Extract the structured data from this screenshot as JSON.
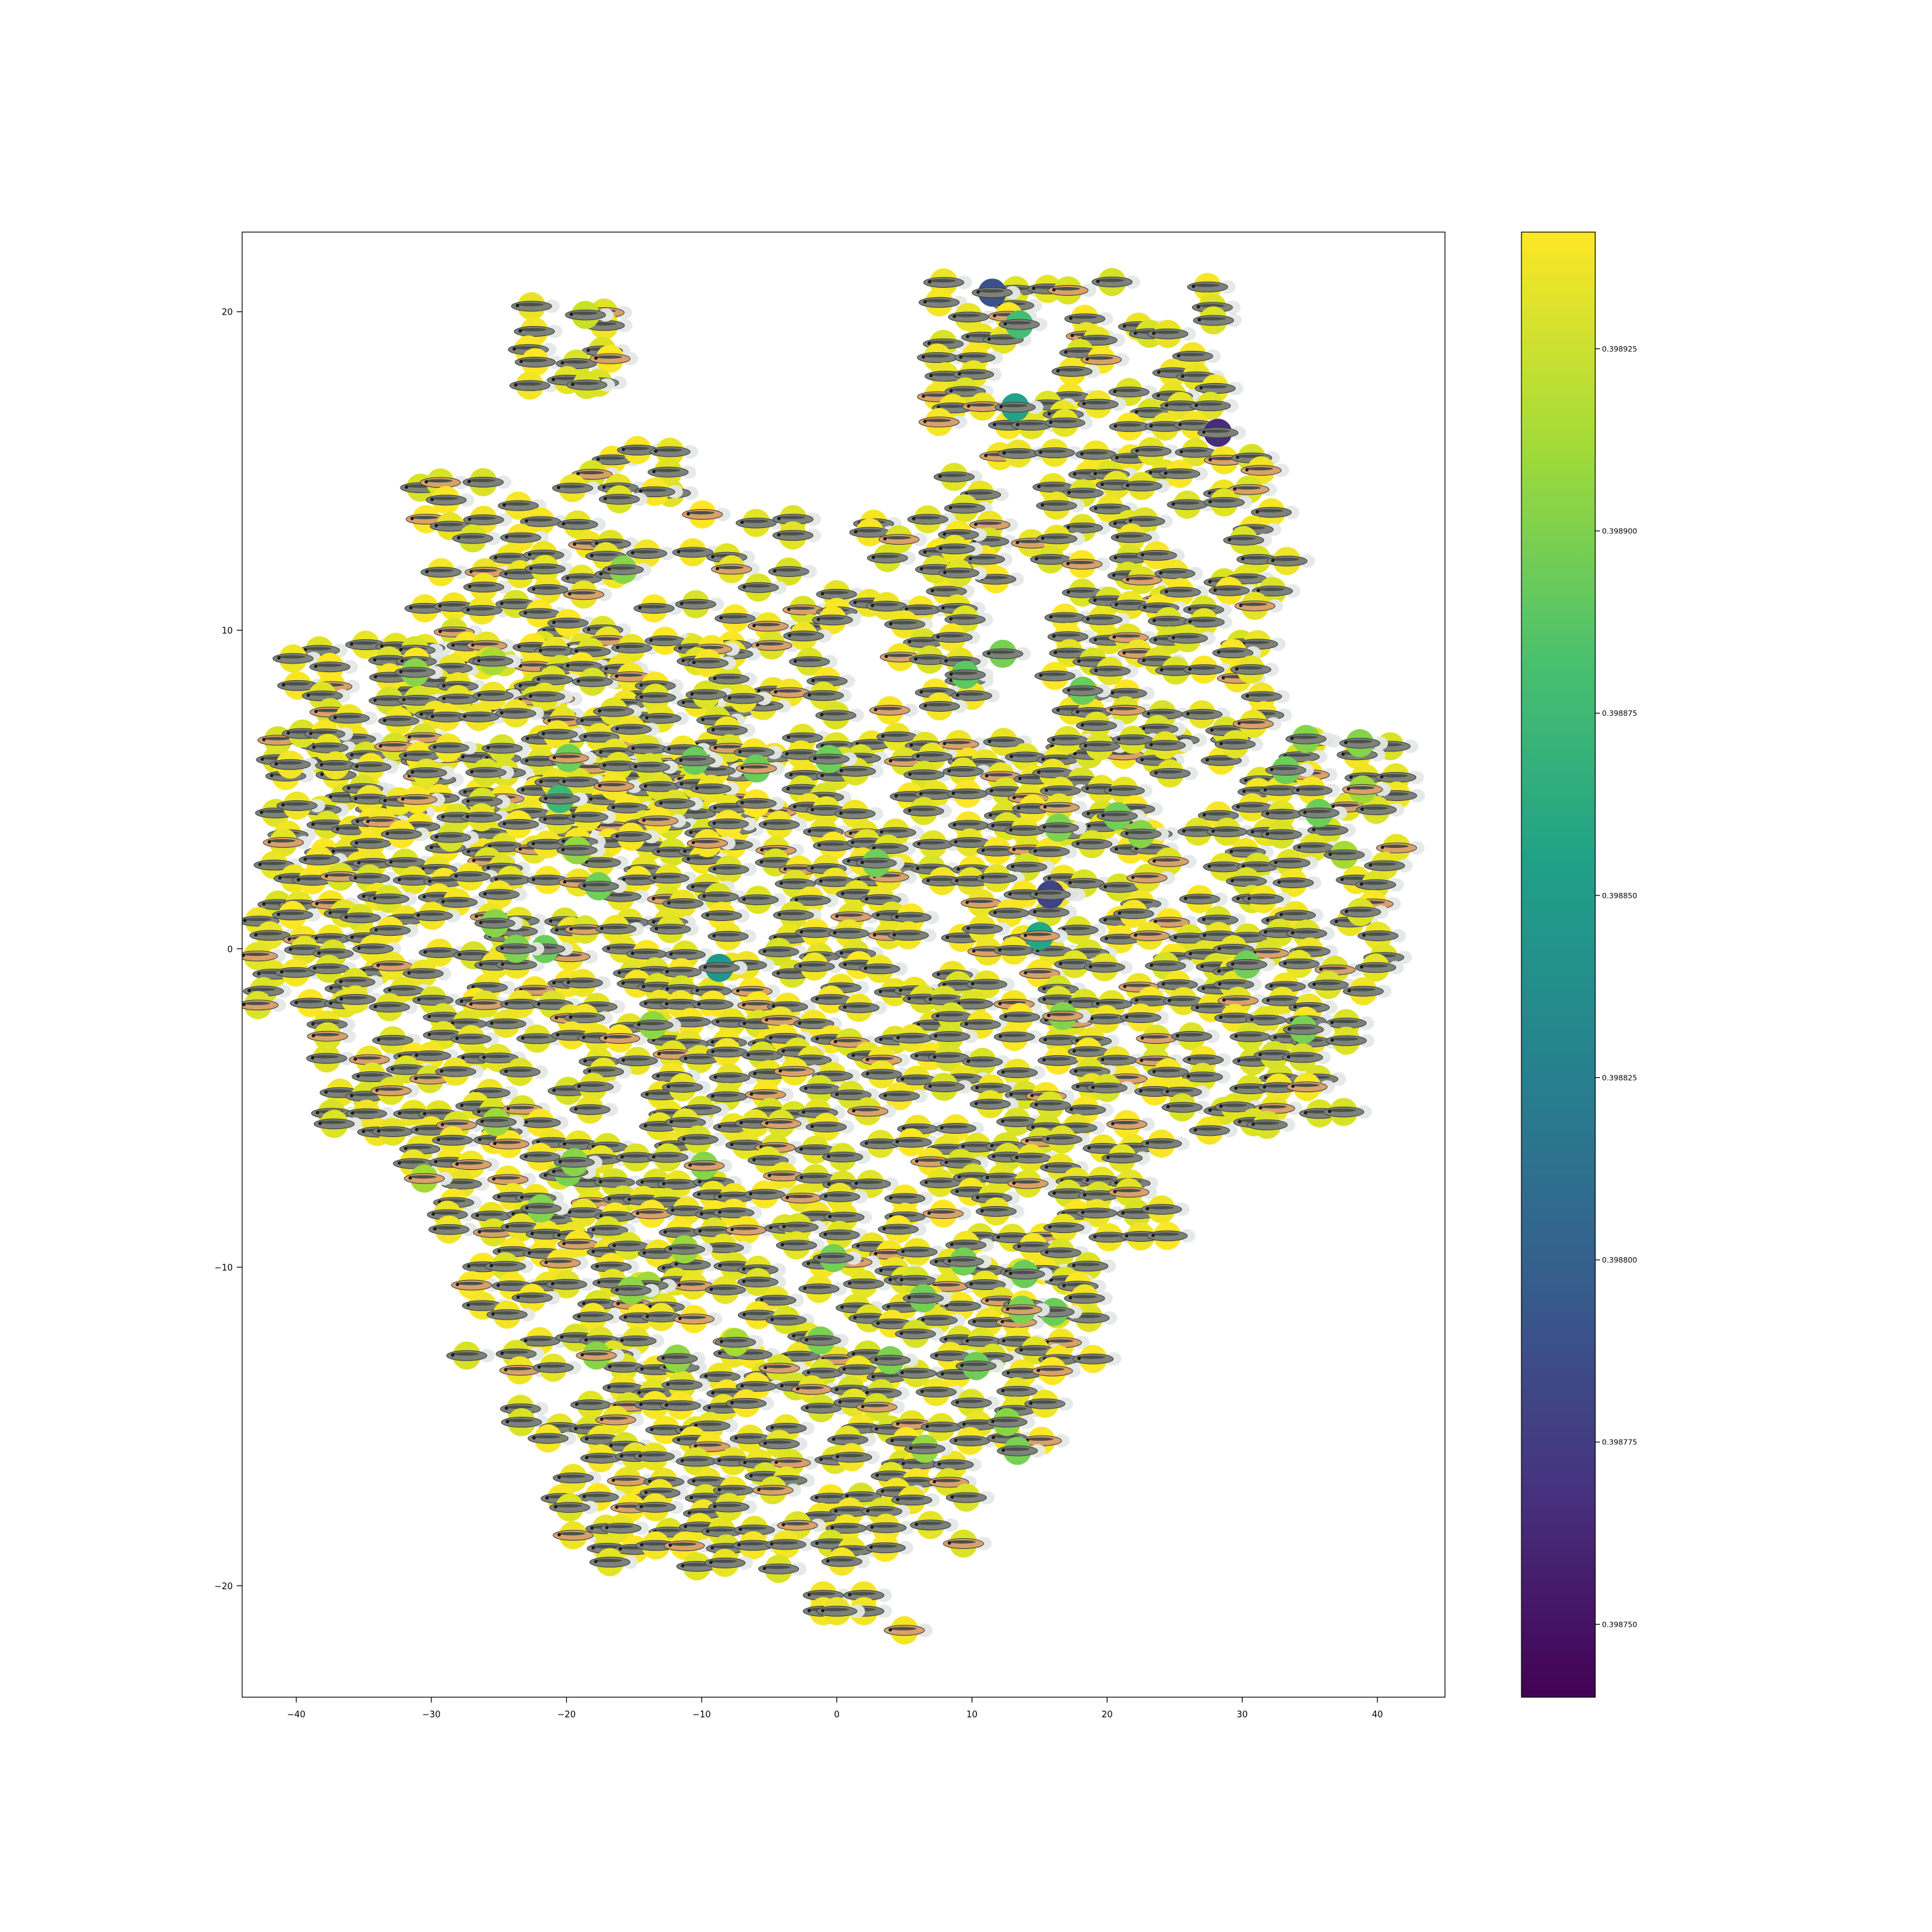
{
  "chart_data": {
    "type": "scatter",
    "title": "",
    "xlabel": "",
    "ylabel": "",
    "xlim": [
      -44,
      45
    ],
    "ylim": [
      -23.5,
      22.5
    ],
    "xticks": [
      -40,
      -30,
      -20,
      -10,
      0,
      10,
      20,
      30,
      40
    ],
    "xtick_labels": [
      "−40",
      "−30",
      "−20",
      "−10",
      "0",
      "10",
      "20",
      "30",
      "40"
    ],
    "yticks": [
      -20,
      -10,
      0,
      10,
      20
    ],
    "ytick_labels": [
      "−20",
      "−10",
      "0",
      "10",
      "20"
    ],
    "grid": false,
    "legend": "none",
    "marker": "fish-thumbnail-icon",
    "colormap": "viridis",
    "colorbar": {
      "range": [
        0.39874,
        0.398941
      ],
      "ticks": [
        0.39875,
        0.398775,
        0.3988,
        0.398825,
        0.39885,
        0.398875,
        0.3989,
        0.398925
      ],
      "tick_labels": [
        "0.398750",
        "0.398775",
        "0.398800",
        "0.398825",
        "0.398850",
        "0.398875",
        "0.398900",
        "0.398925"
      ]
    },
    "notable_points": [
      {
        "x": 11.5,
        "y": 20.6,
        "value": 0.39879
      },
      {
        "x": 28.2,
        "y": 16.2,
        "value": 0.398765
      },
      {
        "x": 13.2,
        "y": 17.0,
        "value": 0.398855
      },
      {
        "x": 13.5,
        "y": 19.6,
        "value": 0.39888
      },
      {
        "x": 15.8,
        "y": 1.7,
        "value": 0.39878
      },
      {
        "x": 15.0,
        "y": 0.4,
        "value": 0.39886
      },
      {
        "x": -8.7,
        "y": -0.6,
        "value": 0.398845
      },
      {
        "x": -20.5,
        "y": 4.7,
        "value": 0.398875
      },
      {
        "x": -15.8,
        "y": 11.9,
        "value": 0.398905
      },
      {
        "x": -10.5,
        "y": 5.9,
        "value": 0.398895
      },
      {
        "x": -1.2,
        "y": -12.3,
        "value": 0.3989
      },
      {
        "x": -25.3,
        "y": 0.8,
        "value": 0.398905
      },
      {
        "x": 38.9,
        "y": 5.0,
        "value": 0.398912
      },
      {
        "x": 9.5,
        "y": 8.6,
        "value": 0.39889
      },
      {
        "x": 18.2,
        "y": 8.1,
        "value": 0.398895
      },
      {
        "x": 22.5,
        "y": 3.6,
        "value": 0.398905
      },
      {
        "x": -18.6,
        "y": 19.9,
        "value": 0.398925
      },
      {
        "x": -18.5,
        "y": 17.7,
        "value": 0.39893
      },
      {
        "x": 0.0,
        "y": -20.8,
        "value": 0.398935
      },
      {
        "x": 5.0,
        "y": -21.4,
        "value": 0.398938
      }
    ]
  }
}
